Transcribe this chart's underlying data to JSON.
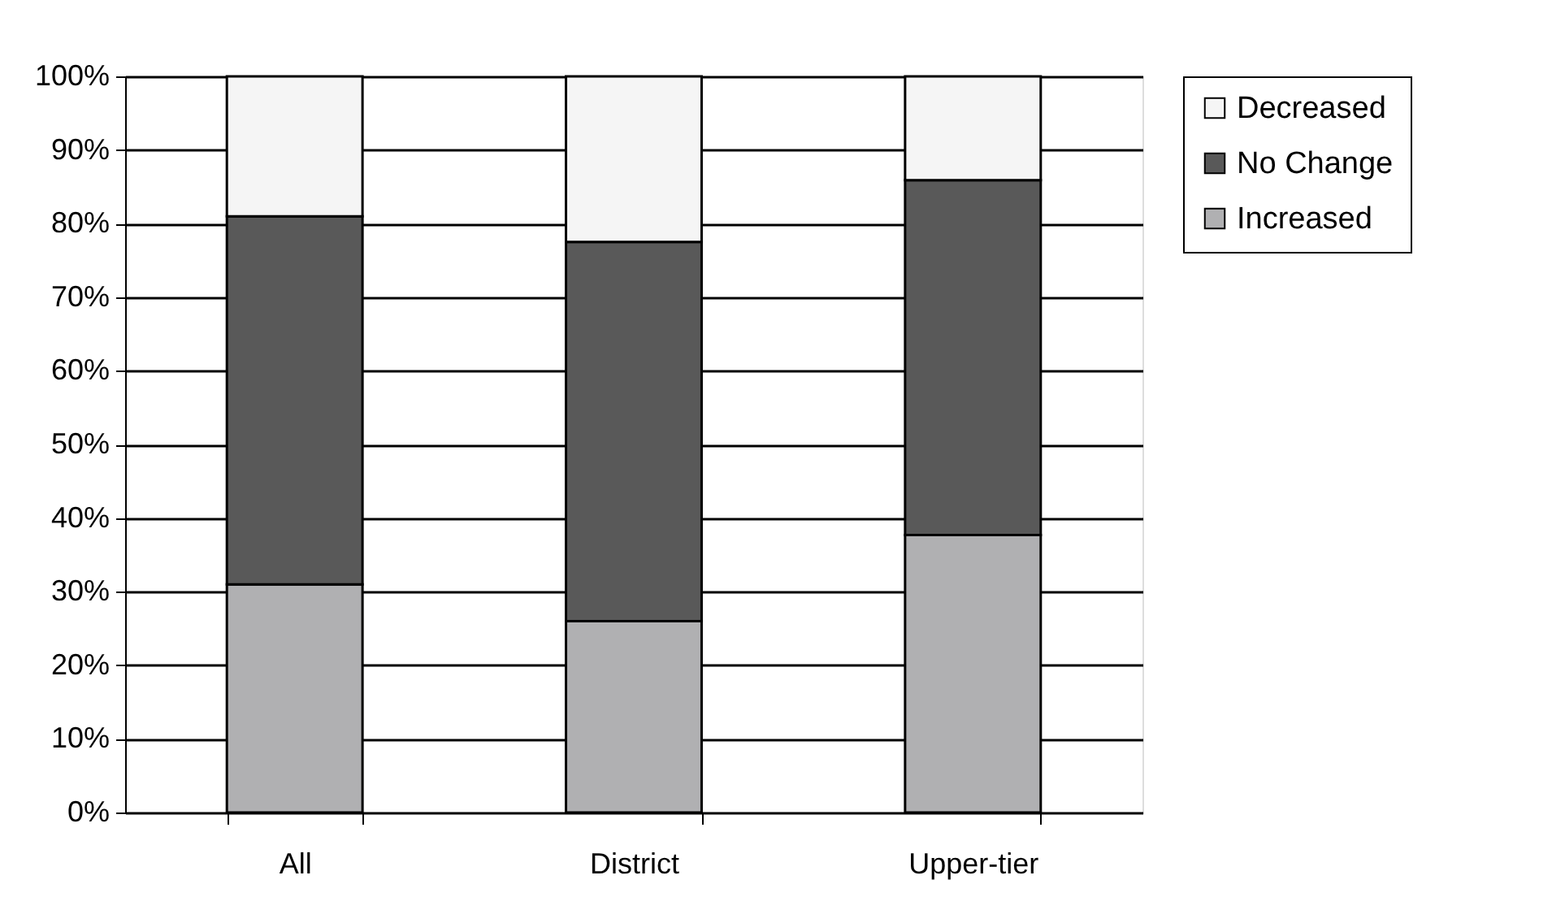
{
  "chart_data": {
    "type": "bar",
    "stacked": true,
    "categories": [
      "All",
      "District",
      "Upper-tier"
    ],
    "series": [
      {
        "name": "Increased",
        "color": "#b0b0b2",
        "values": [
          31,
          26,
          37.7
        ]
      },
      {
        "name": "No Change",
        "color": "#595959",
        "values": [
          50,
          51.5,
          48.2
        ]
      },
      {
        "name": "Decreased",
        "color": "#f5f5f5",
        "values": [
          19,
          22.5,
          14.1
        ]
      }
    ],
    "ylim": [
      0,
      100
    ],
    "yticks": [
      {
        "value": 0,
        "label": "0%"
      },
      {
        "value": 10,
        "label": "10%"
      },
      {
        "value": 20,
        "label": "20%"
      },
      {
        "value": 30,
        "label": "30%"
      },
      {
        "value": 40,
        "label": "40%"
      },
      {
        "value": 50,
        "label": "50%"
      },
      {
        "value": 60,
        "label": "60%"
      },
      {
        "value": 70,
        "label": "70%"
      },
      {
        "value": 80,
        "label": "80%"
      },
      {
        "value": 90,
        "label": "90%"
      },
      {
        "value": 100,
        "label": "100%"
      }
    ],
    "grid": "y",
    "legend": "right"
  }
}
